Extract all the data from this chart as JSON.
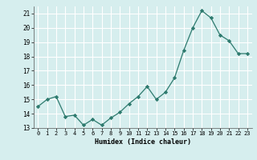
{
  "x": [
    0,
    1,
    2,
    3,
    4,
    5,
    6,
    7,
    8,
    9,
    10,
    11,
    12,
    13,
    14,
    15,
    16,
    17,
    18,
    19,
    20,
    21,
    22,
    23
  ],
  "y": [
    14.5,
    15.0,
    15.2,
    13.8,
    13.9,
    13.2,
    13.6,
    13.2,
    13.7,
    14.1,
    14.7,
    15.2,
    15.9,
    15.0,
    15.5,
    16.5,
    18.4,
    20.0,
    21.2,
    20.7,
    19.5,
    19.1,
    18.2,
    18.2
  ],
  "xlabel": "Humidex (Indice chaleur)",
  "ylim": [
    13,
    21.5
  ],
  "xlim": [
    -0.5,
    23.5
  ],
  "yticks": [
    13,
    14,
    15,
    16,
    17,
    18,
    19,
    20,
    21
  ],
  "xticks": [
    0,
    1,
    2,
    3,
    4,
    5,
    6,
    7,
    8,
    9,
    10,
    11,
    12,
    13,
    14,
    15,
    16,
    17,
    18,
    19,
    20,
    21,
    22,
    23
  ],
  "line_color": "#2d7a6e",
  "marker_color": "#2d7a6e",
  "bg_color": "#d6eeee",
  "grid_color": "#b0d8d8",
  "fig_bg": "#d6eeee"
}
